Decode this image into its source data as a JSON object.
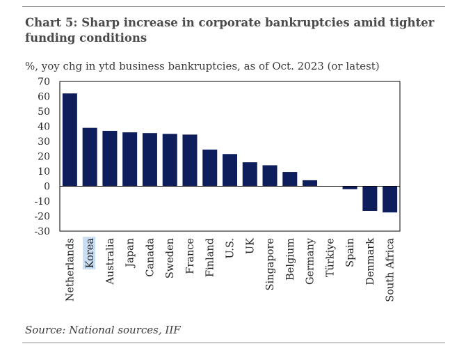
{
  "title": "Chart 5:  Sharp increase in corporate bankruptcies amid tighter funding conditions",
  "subtitle": "%, yoy chg in ytd business bankruptcies, as of Oct. 2023 (or latest)",
  "source": "Source: National sources, IIF",
  "colors": {
    "bar": "#0e1d5c",
    "highlight": "#c9def3",
    "axis": "#000000"
  },
  "chart_data": {
    "type": "bar",
    "title": "Chart 5:  Sharp increase in corporate bankruptcies amid tighter funding conditions",
    "ylabel": "%, yoy chg in ytd business bankruptcies, as of Oct. 2023 (or latest)",
    "xlabel": "",
    "ylim": [
      -30,
      70
    ],
    "yticks": [
      70,
      60,
      50,
      40,
      30,
      20,
      10,
      0,
      -10,
      -20,
      -30
    ],
    "ytick_labels": [
      "70",
      "60",
      "50",
      "40",
      "30",
      "20",
      "10",
      "0",
      "-10",
      "-20",
      "-30"
    ],
    "categories": [
      "Netherlands",
      "Korea",
      "Australia",
      "Japan",
      "Canada",
      "Sweden",
      "France",
      "Finland",
      "U.S.",
      "UK",
      "Singapore",
      "Belgium",
      "Germany",
      "Türkiye",
      "Spain",
      "Denmark",
      "South Africa"
    ],
    "values": [
      62,
      39,
      37,
      36,
      35.5,
      35,
      34.5,
      24.5,
      21.5,
      16,
      14,
      9.5,
      4,
      0,
      -2,
      -16.5,
      -17.5
    ],
    "highlighted_category": "Korea",
    "grid": false,
    "legend": "none"
  }
}
